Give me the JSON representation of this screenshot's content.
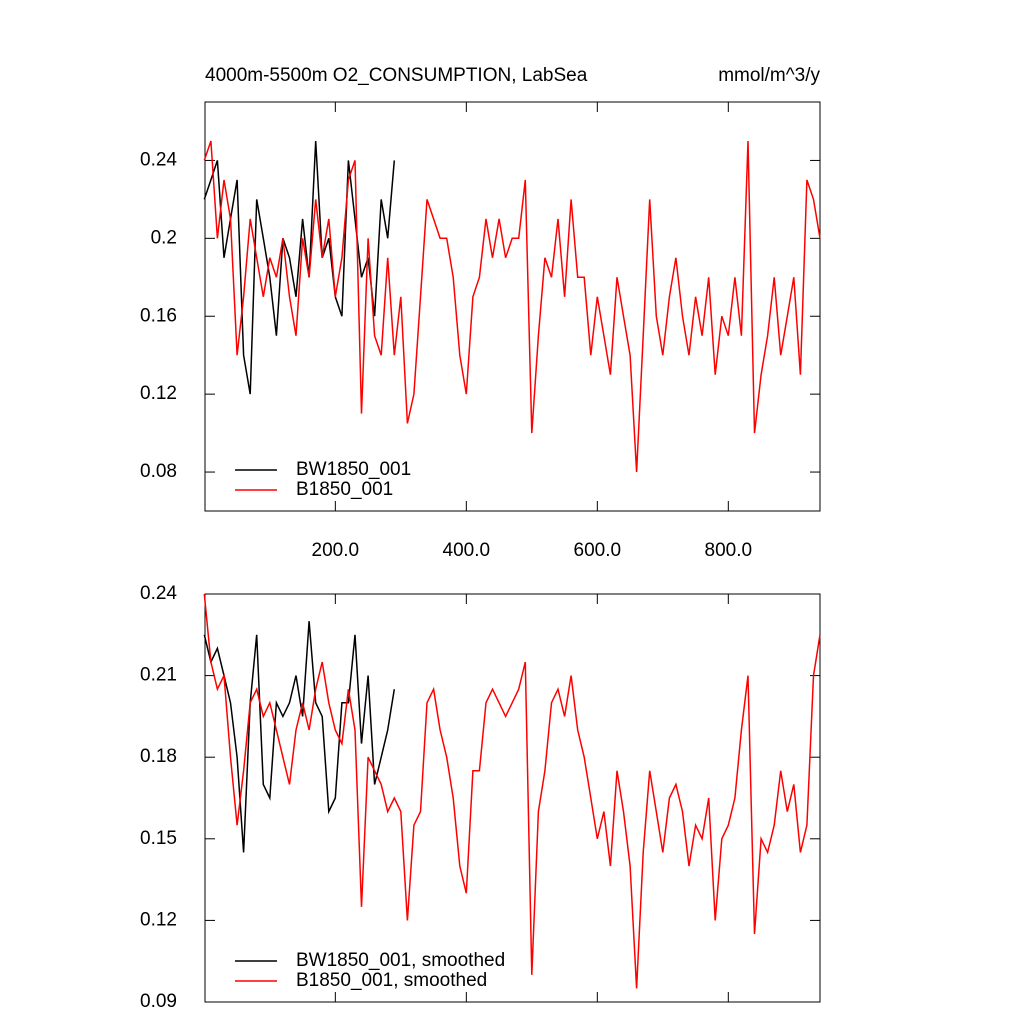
{
  "chart_data": [
    {
      "type": "line",
      "title": "4000m-5500m O2_CONSUMPTION, LabSea",
      "subtitle": "mmol/m^3/y",
      "x": [
        0,
        10,
        20,
        30,
        40,
        50,
        60,
        70,
        80,
        90,
        100,
        110,
        120,
        130,
        140,
        150,
        160,
        170,
        180,
        190,
        200,
        210,
        220,
        230,
        240,
        250,
        260,
        270,
        280,
        290,
        300,
        310,
        320,
        330,
        340,
        350,
        360,
        370,
        380,
        390,
        400,
        410,
        420,
        430,
        440,
        450,
        460,
        470,
        480,
        490,
        500,
        510,
        520,
        530,
        540,
        550,
        560,
        570,
        580,
        590,
        600,
        610,
        620,
        630,
        640,
        650,
        660,
        670,
        680,
        690,
        700,
        710,
        720,
        730,
        740,
        750,
        760,
        770,
        780,
        790,
        800,
        810,
        820,
        830,
        840,
        850,
        860,
        870,
        880,
        890,
        900,
        910,
        920,
        930,
        940
      ],
      "xlim": [
        1,
        940
      ],
      "xticks": [
        {
          "value": 200,
          "label": "200.0"
        },
        {
          "value": 400,
          "label": "400.0"
        },
        {
          "value": 600,
          "label": "600.0"
        },
        {
          "value": 800,
          "label": "800.0"
        }
      ],
      "ylim": [
        0.06,
        0.27
      ],
      "yticks": [
        0.08,
        0.12,
        0.16,
        0.2,
        0.24
      ],
      "series": [
        {
          "name": "BW1850_001",
          "color": "#000000",
          "values": [
            0.22,
            0.23,
            0.24,
            0.19,
            0.21,
            0.23,
            0.14,
            0.12,
            0.22,
            0.2,
            0.18,
            0.15,
            0.2,
            0.19,
            0.17,
            0.21,
            0.18,
            0.25,
            0.19,
            0.2,
            0.17,
            0.16,
            0.24,
            0.21,
            0.18,
            0.19,
            0.16,
            0.22,
            0.2,
            0.24,
            null,
            null,
            null,
            null,
            null,
            null,
            null,
            null,
            null,
            null,
            null,
            null,
            null,
            null,
            null,
            null,
            null,
            null,
            null,
            null,
            null,
            null,
            null,
            null,
            null,
            null,
            null,
            null,
            null,
            null,
            null,
            null,
            null,
            null,
            null,
            null,
            null,
            null,
            null,
            null,
            null,
            null,
            null,
            null,
            null,
            null,
            null,
            null,
            null,
            null,
            null,
            null,
            null,
            null,
            null,
            null,
            null,
            null,
            null,
            null,
            null,
            null,
            null,
            null,
            null
          ]
        },
        {
          "name": "B1850_001",
          "color": "#ff0000",
          "values": [
            0.24,
            0.25,
            0.2,
            0.23,
            0.21,
            0.14,
            0.17,
            0.21,
            0.19,
            0.17,
            0.19,
            0.18,
            0.2,
            0.17,
            0.15,
            0.2,
            0.18,
            0.22,
            0.19,
            0.21,
            0.17,
            0.19,
            0.23,
            0.24,
            0.11,
            0.2,
            0.15,
            0.14,
            0.19,
            0.14,
            0.17,
            0.105,
            0.12,
            0.17,
            0.22,
            0.21,
            0.2,
            0.2,
            0.18,
            0.14,
            0.12,
            0.17,
            0.18,
            0.21,
            0.19,
            0.21,
            0.19,
            0.2,
            0.2,
            0.23,
            0.1,
            0.15,
            0.19,
            0.18,
            0.21,
            0.17,
            0.22,
            0.18,
            0.18,
            0.14,
            0.17,
            0.15,
            0.13,
            0.18,
            0.16,
            0.14,
            0.08,
            0.15,
            0.22,
            0.16,
            0.14,
            0.17,
            0.19,
            0.16,
            0.14,
            0.17,
            0.15,
            0.18,
            0.13,
            0.16,
            0.15,
            0.18,
            0.15,
            0.25,
            0.1,
            0.13,
            0.15,
            0.18,
            0.14,
            0.16,
            0.18,
            0.13,
            0.23,
            0.22,
            0.2
          ]
        }
      ]
    },
    {
      "type": "line",
      "x": [
        0,
        10,
        20,
        30,
        40,
        50,
        60,
        70,
        80,
        90,
        100,
        110,
        120,
        130,
        140,
        150,
        160,
        170,
        180,
        190,
        200,
        210,
        220,
        230,
        240,
        250,
        260,
        270,
        280,
        290,
        300,
        310,
        320,
        330,
        340,
        350,
        360,
        370,
        380,
        390,
        400,
        410,
        420,
        430,
        440,
        450,
        460,
        470,
        480,
        490,
        500,
        510,
        520,
        530,
        540,
        550,
        560,
        570,
        580,
        590,
        600,
        610,
        620,
        630,
        640,
        650,
        660,
        670,
        680,
        690,
        700,
        710,
        720,
        730,
        740,
        750,
        760,
        770,
        780,
        790,
        800,
        810,
        820,
        830,
        840,
        850,
        860,
        870,
        880,
        890,
        900,
        910,
        920,
        930,
        940
      ],
      "xlim": [
        1,
        940
      ],
      "xticks": [
        200,
        400,
        600,
        800
      ],
      "ylim": [
        0.09,
        0.24
      ],
      "yticks": [
        0.09,
        0.12,
        0.15,
        0.18,
        0.21,
        0.24
      ],
      "series": [
        {
          "name": "BW1850_001, smoothed",
          "color": "#000000",
          "values": [
            0.225,
            0.215,
            0.22,
            0.21,
            0.2,
            0.18,
            0.145,
            0.2,
            0.225,
            0.17,
            0.165,
            0.2,
            0.195,
            0.2,
            0.21,
            0.195,
            0.23,
            0.2,
            0.195,
            0.16,
            0.165,
            0.2,
            0.2,
            0.225,
            0.185,
            0.21,
            0.17,
            0.18,
            0.19,
            0.205,
            null,
            null,
            null,
            null,
            null,
            null,
            null,
            null,
            null,
            null,
            null,
            null,
            null,
            null,
            null,
            null,
            null,
            null,
            null,
            null,
            null,
            null,
            null,
            null,
            null,
            null,
            null,
            null,
            null,
            null,
            null,
            null,
            null,
            null,
            null,
            null,
            null,
            null,
            null,
            null,
            null,
            null,
            null,
            null,
            null,
            null,
            null,
            null,
            null,
            null,
            null,
            null,
            null,
            null,
            null,
            null,
            null,
            null,
            null,
            null,
            null,
            null,
            null,
            null,
            null
          ]
        },
        {
          "name": "B1850_001, smoothed",
          "color": "#ff0000",
          "values": [
            0.24,
            0.215,
            0.205,
            0.21,
            0.18,
            0.155,
            0.175,
            0.2,
            0.205,
            0.195,
            0.2,
            0.19,
            0.18,
            0.17,
            0.19,
            0.2,
            0.19,
            0.205,
            0.215,
            0.2,
            0.19,
            0.185,
            0.205,
            0.19,
            0.125,
            0.18,
            0.175,
            0.17,
            0.16,
            0.165,
            0.16,
            0.12,
            0.155,
            0.16,
            0.2,
            0.205,
            0.19,
            0.18,
            0.165,
            0.14,
            0.13,
            0.175,
            0.175,
            0.2,
            0.205,
            0.2,
            0.195,
            0.2,
            0.205,
            0.215,
            0.1,
            0.16,
            0.175,
            0.2,
            0.205,
            0.195,
            0.21,
            0.19,
            0.18,
            0.165,
            0.15,
            0.16,
            0.14,
            0.175,
            0.16,
            0.14,
            0.095,
            0.145,
            0.175,
            0.16,
            0.145,
            0.165,
            0.17,
            0.16,
            0.14,
            0.155,
            0.15,
            0.165,
            0.12,
            0.15,
            0.155,
            0.165,
            0.19,
            0.21,
            0.115,
            0.15,
            0.145,
            0.155,
            0.175,
            0.16,
            0.17,
            0.145,
            0.155,
            0.21,
            0.225
          ]
        }
      ]
    }
  ]
}
